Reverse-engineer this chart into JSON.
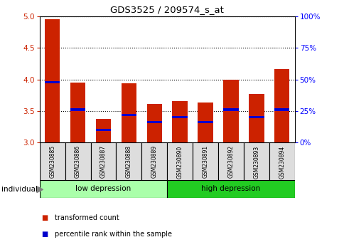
{
  "title": "GDS3525 / 209574_s_at",
  "samples": [
    "GSM230885",
    "GSM230886",
    "GSM230887",
    "GSM230888",
    "GSM230889",
    "GSM230890",
    "GSM230891",
    "GSM230892",
    "GSM230893",
    "GSM230894"
  ],
  "transformed_count": [
    4.95,
    3.95,
    3.37,
    3.94,
    3.61,
    3.66,
    3.63,
    3.99,
    3.77,
    4.16
  ],
  "percentile_rank_pct": [
    48,
    26,
    10,
    22,
    16,
    20,
    16,
    26,
    20,
    26
  ],
  "ylim": [
    3.0,
    5.0
  ],
  "yticks": [
    3.0,
    3.5,
    4.0,
    4.5,
    5.0
  ],
  "y2ticks": [
    0,
    25,
    50,
    75,
    100
  ],
  "y2ticklabels": [
    "0%",
    "25%",
    "50%",
    "75%",
    "100%"
  ],
  "groups": [
    {
      "label": "low depression",
      "indices": [
        0,
        1,
        2,
        3,
        4
      ],
      "color": "#aaffaa"
    },
    {
      "label": "high depression",
      "indices": [
        5,
        6,
        7,
        8,
        9
      ],
      "color": "#22cc22"
    }
  ],
  "bar_color": "#CC2200",
  "blue_color": "#0000CC",
  "bar_width": 0.6,
  "tick_label_bg": "#DDDDDD",
  "individual_label": "individual",
  "legend_items": [
    {
      "label": "transformed count",
      "color": "#CC2200"
    },
    {
      "label": "percentile rank within the sample",
      "color": "#0000CC"
    }
  ]
}
